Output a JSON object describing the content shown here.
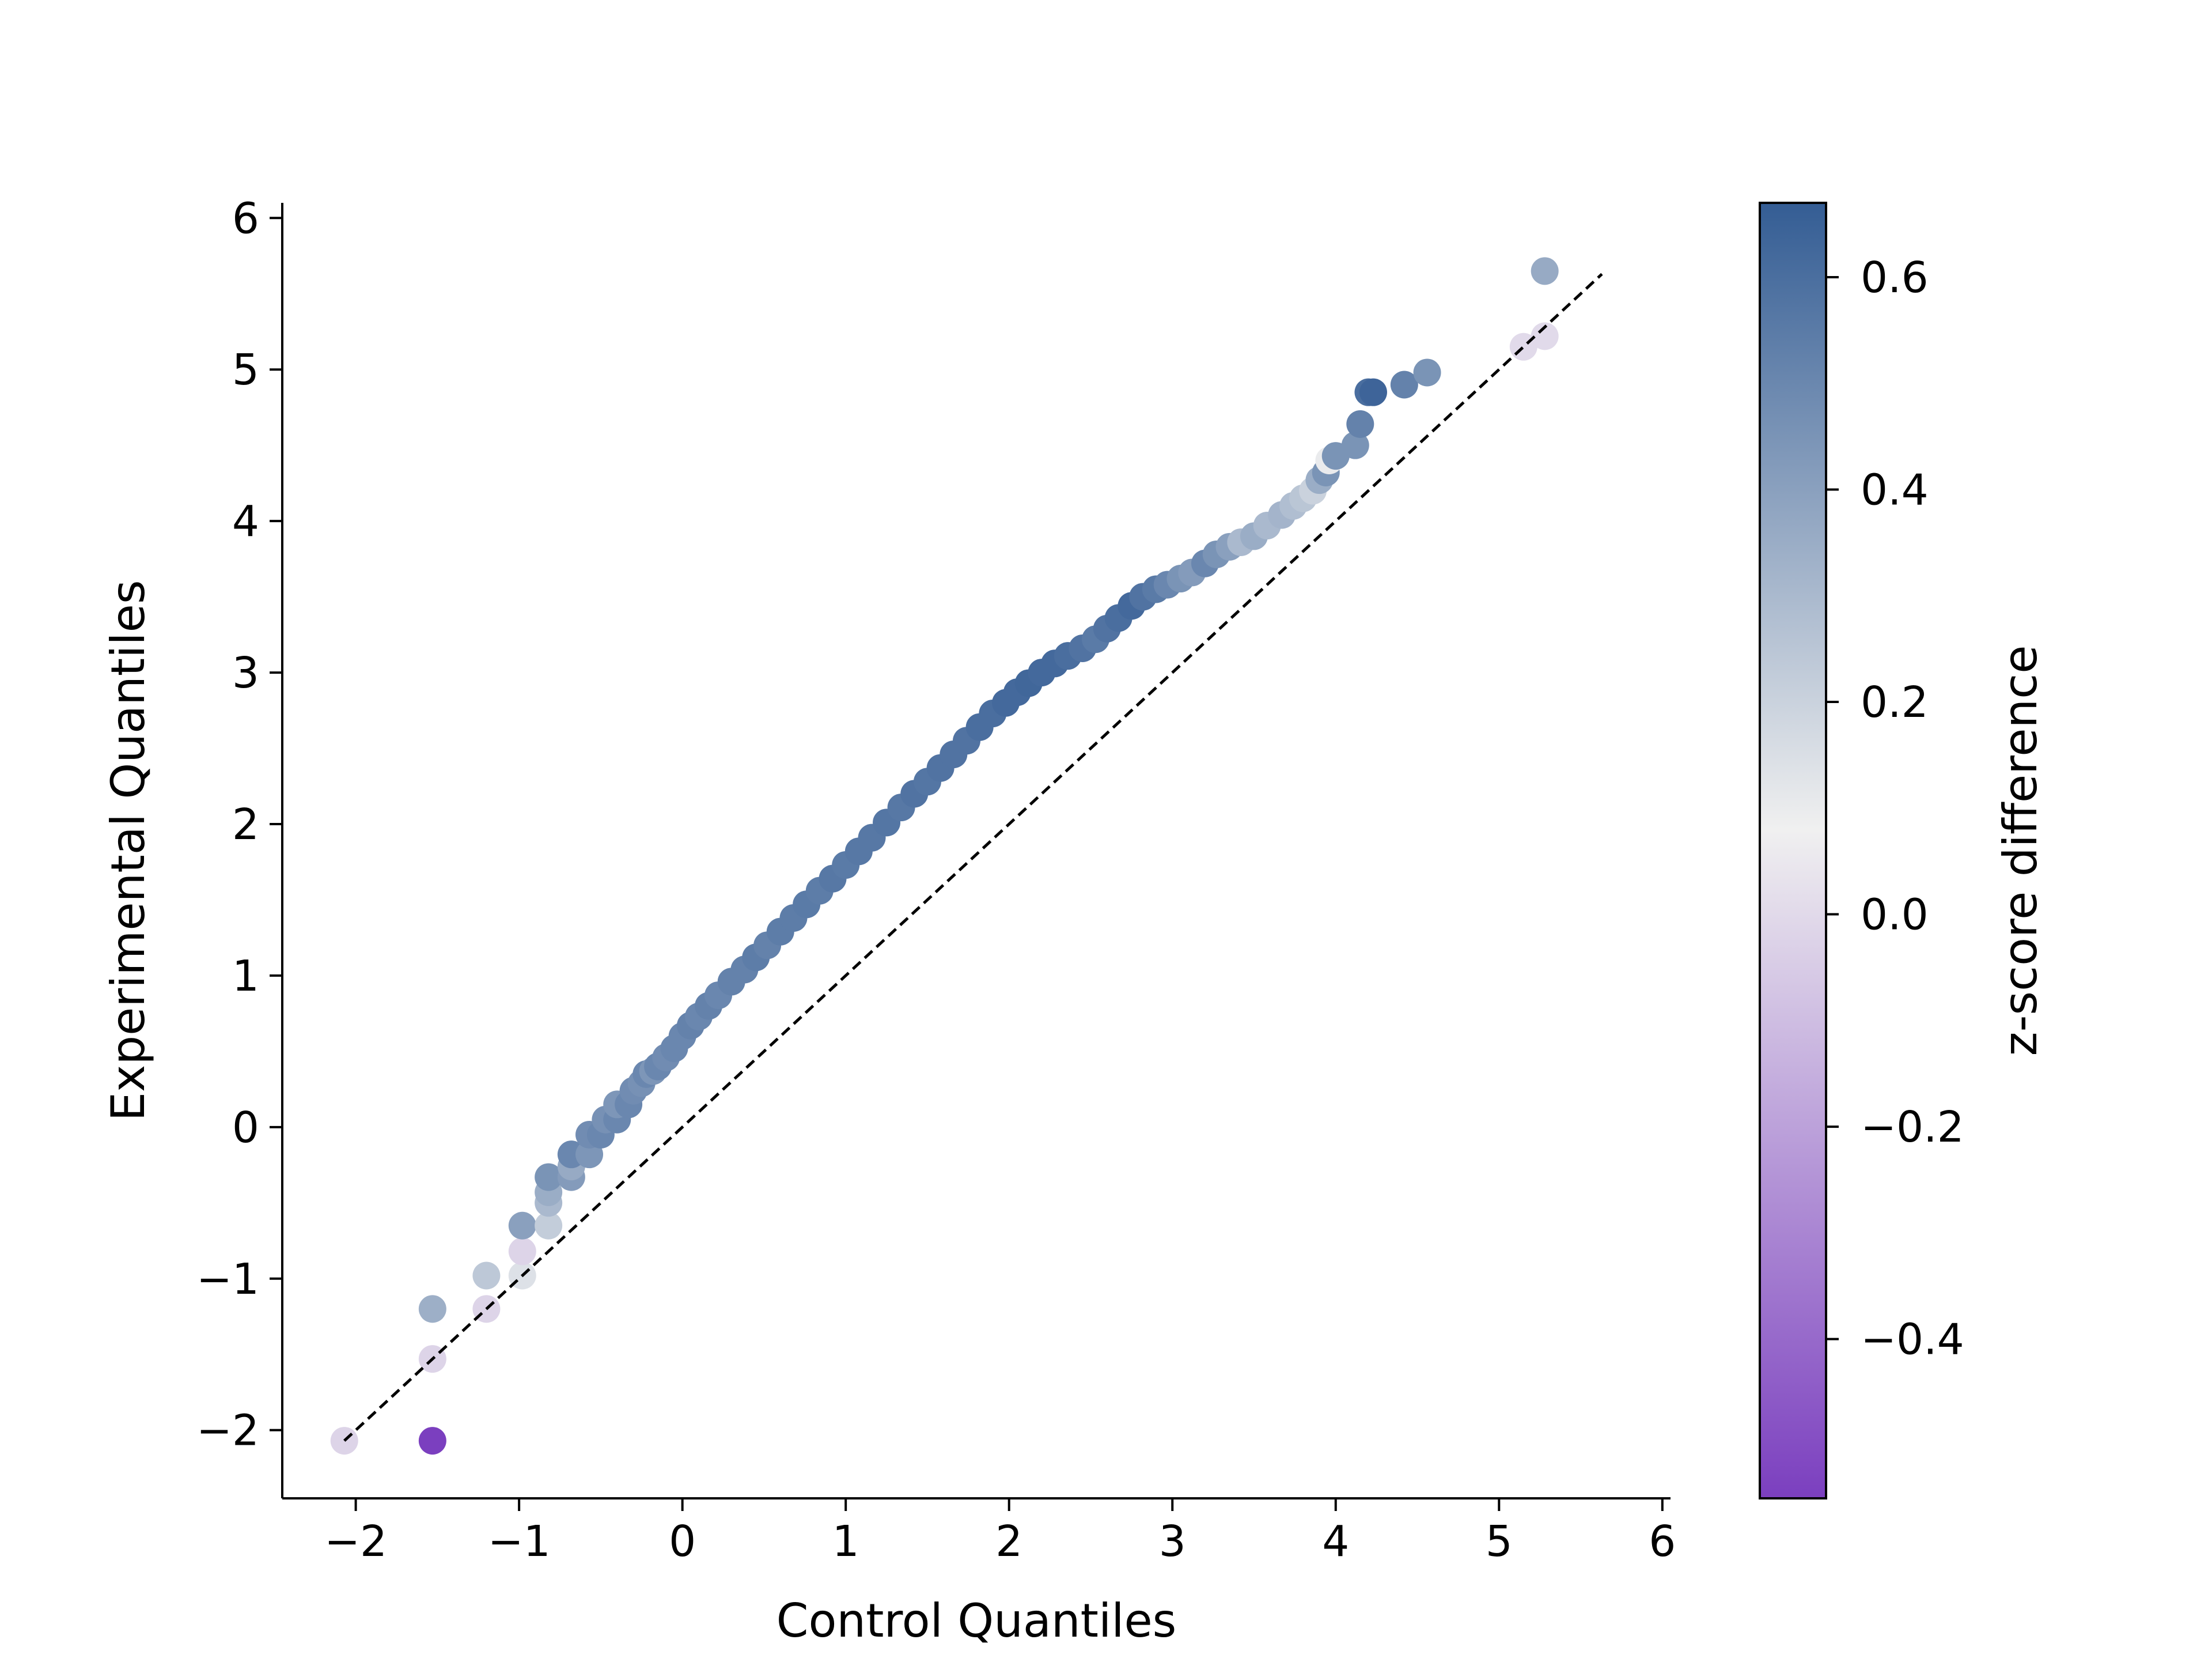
{
  "chart_data": {
    "type": "scatter",
    "title": "",
    "xlabel": "Control Quantiles",
    "ylabel": "Experimental Quantiles",
    "xlim": [
      -2.45,
      6.05
    ],
    "ylim": [
      -2.45,
      6.1
    ],
    "xticks": [
      -2,
      -1,
      0,
      1,
      2,
      3,
      4,
      5,
      6
    ],
    "xtick_labels": [
      "−2",
      "−1",
      "0",
      "1",
      "2",
      "3",
      "4",
      "5",
      "6"
    ],
    "yticks": [
      -2,
      -1,
      0,
      1,
      2,
      3,
      4,
      5,
      6
    ],
    "ytick_labels": [
      "−2",
      "−1",
      "0",
      "1",
      "2",
      "3",
      "4",
      "5",
      "6"
    ],
    "grid": false,
    "reference_line": {
      "style": "dashed",
      "color": "#000000",
      "x": [
        -2.07,
        5.63
      ],
      "y": [
        -2.07,
        5.63
      ]
    },
    "colorbar": {
      "label": "z-score difference",
      "range": [
        -0.55,
        0.67
      ],
      "ticks": [
        -0.4,
        -0.2,
        0.0,
        0.2,
        0.4,
        0.6
      ],
      "tick_labels": [
        "−0.4",
        "−0.2",
        "0.0",
        "0.2",
        "0.4",
        "0.6"
      ],
      "colors": [
        "#7b3fbf",
        "#f0f0f0",
        "#345d94"
      ]
    },
    "points": {
      "x": [
        -2.07,
        -1.53,
        -1.53,
        -1.53,
        -1.2,
        -1.2,
        -0.98,
        -0.98,
        -0.98,
        -0.82,
        -0.82,
        -0.82,
        -0.82,
        -0.68,
        -0.68,
        -0.68,
        -0.57,
        -0.57,
        -0.5,
        -0.47,
        -0.4,
        -0.4,
        -0.33,
        -0.3,
        -0.25,
        -0.22,
        -0.18,
        -0.15,
        -0.1,
        -0.05,
        0.0,
        0.05,
        0.1,
        0.16,
        0.22,
        0.3,
        0.38,
        0.45,
        0.52,
        0.6,
        0.68,
        0.76,
        0.84,
        0.92,
        1.0,
        1.08,
        1.16,
        1.25,
        1.34,
        1.42,
        1.5,
        1.58,
        1.66,
        1.74,
        1.82,
        1.9,
        1.98,
        2.05,
        2.12,
        2.2,
        2.28,
        2.36,
        2.45,
        2.53,
        2.6,
        2.67,
        2.75,
        2.82,
        2.9,
        2.97,
        3.05,
        3.12,
        3.2,
        3.27,
        3.35,
        3.42,
        3.5,
        3.58,
        3.67,
        3.74,
        3.8,
        3.86,
        3.9,
        3.94,
        3.96,
        4.0,
        4.12,
        4.15,
        4.2,
        4.23,
        4.42,
        4.56,
        5.15,
        5.28,
        5.28
      ],
      "y": [
        -2.07,
        -2.07,
        -1.53,
        -1.2,
        -1.2,
        -0.98,
        -0.98,
        -0.82,
        -0.65,
        -0.65,
        -0.5,
        -0.43,
        -0.33,
        -0.33,
        -0.26,
        -0.18,
        -0.18,
        -0.05,
        -0.05,
        0.05,
        0.05,
        0.15,
        0.15,
        0.24,
        0.29,
        0.35,
        0.37,
        0.4,
        0.46,
        0.52,
        0.6,
        0.67,
        0.73,
        0.8,
        0.87,
        0.96,
        1.04,
        1.12,
        1.2,
        1.29,
        1.38,
        1.47,
        1.56,
        1.64,
        1.73,
        1.82,
        1.91,
        2.01,
        2.11,
        2.2,
        2.28,
        2.37,
        2.46,
        2.55,
        2.64,
        2.73,
        2.8,
        2.87,
        2.93,
        3.0,
        3.06,
        3.11,
        3.16,
        3.22,
        3.29,
        3.36,
        3.44,
        3.5,
        3.55,
        3.58,
        3.62,
        3.66,
        3.72,
        3.78,
        3.83,
        3.86,
        3.9,
        3.97,
        4.04,
        4.1,
        4.15,
        4.2,
        4.27,
        4.32,
        4.4,
        4.43,
        4.5,
        4.64,
        4.85,
        4.85,
        4.9,
        4.98,
        5.15,
        5.22,
        5.65
      ],
      "z": [
        -0.02,
        -0.55,
        -0.02,
        0.34,
        -0.02,
        0.24,
        0.14,
        -0.02,
        0.4,
        0.22,
        0.3,
        0.35,
        0.45,
        0.42,
        0.36,
        0.5,
        0.44,
        0.48,
        0.5,
        0.46,
        0.5,
        0.44,
        0.5,
        0.48,
        0.46,
        0.5,
        0.44,
        0.5,
        0.48,
        0.5,
        0.5,
        0.52,
        0.5,
        0.52,
        0.5,
        0.52,
        0.52,
        0.54,
        0.52,
        0.54,
        0.54,
        0.55,
        0.54,
        0.56,
        0.55,
        0.56,
        0.56,
        0.57,
        0.56,
        0.58,
        0.57,
        0.58,
        0.58,
        0.58,
        0.6,
        0.6,
        0.62,
        0.62,
        0.63,
        0.62,
        0.62,
        0.6,
        0.58,
        0.55,
        0.58,
        0.6,
        0.62,
        0.58,
        0.55,
        0.5,
        0.45,
        0.42,
        0.5,
        0.45,
        0.4,
        0.3,
        0.35,
        0.3,
        0.32,
        0.28,
        0.25,
        0.2,
        0.35,
        0.45,
        0.1,
        0.45,
        0.45,
        0.52,
        0.6,
        0.64,
        0.52,
        0.45,
        0.0,
        0.0,
        0.36
      ]
    }
  }
}
